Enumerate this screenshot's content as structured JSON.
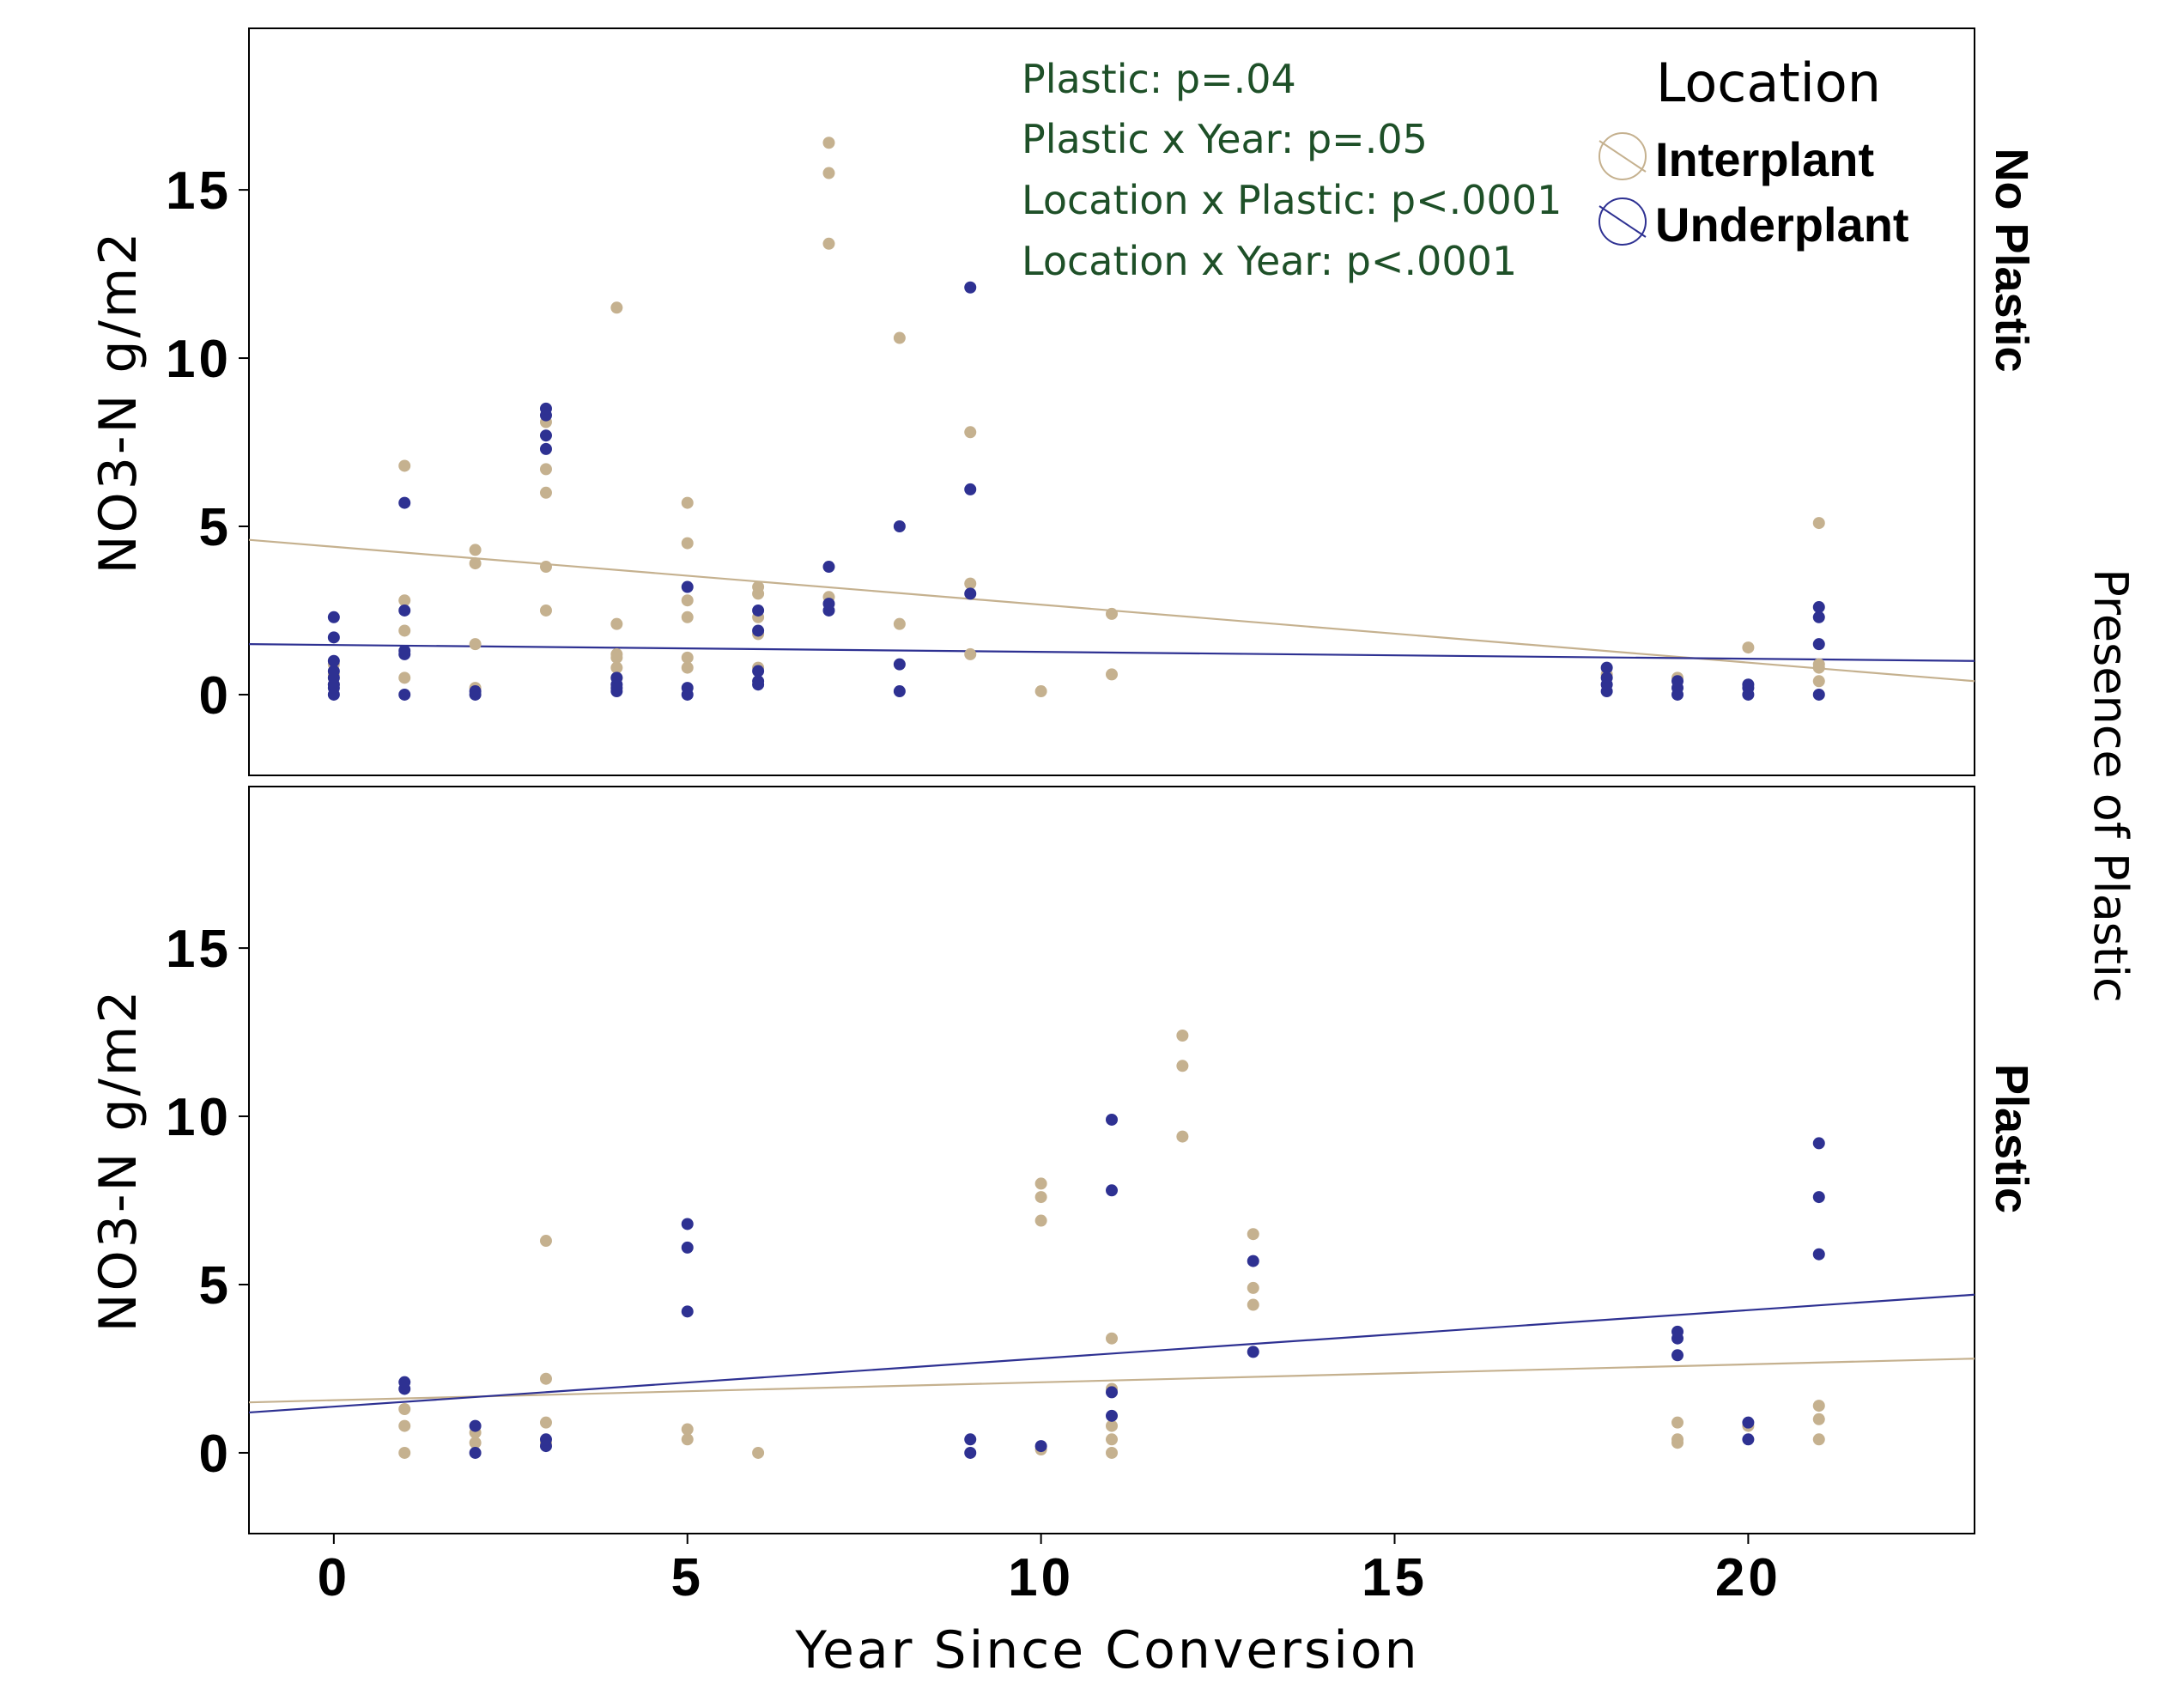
{
  "chart_data": {
    "type": "scatter",
    "xlabel": "Year Since Conversion",
    "ylabel": "NO3-N  g/m2",
    "facet_label": "Presence of Plastic",
    "xlim": [
      -1.2,
      23.2
    ],
    "ylim": [
      -2.4,
      19.8
    ],
    "x_ticks": [
      0,
      5,
      10,
      15,
      20
    ],
    "y_ticks": [
      0,
      5,
      10,
      15
    ],
    "legend": {
      "title": "Location",
      "placement": "top-right",
      "entries": [
        {
          "name": "Interplant",
          "color": "#C5B18F"
        },
        {
          "name": "Underplant",
          "color": "#2E3192"
        }
      ]
    },
    "annotations": [
      "Plastic: p=.04",
      "Plastic x Year: p=.05",
      "Location x Plastic: p<.0001",
      "Location x Year: p<.0001"
    ],
    "panels": [
      {
        "label": "No Plastic",
        "series": [
          {
            "name": "Interplant",
            "color": "#C5B18F",
            "points": [
              [
                0,
                0.3
              ],
              [
                0,
                0.6
              ],
              [
                0,
                0.9
              ],
              [
                1,
                0.5
              ],
              [
                1,
                1.9
              ],
              [
                1,
                2.8
              ],
              [
                1,
                6.8
              ],
              [
                2,
                0.2
              ],
              [
                2,
                1.5
              ],
              [
                2,
                3.9
              ],
              [
                2,
                4.3
              ],
              [
                3,
                2.5
              ],
              [
                3,
                3.8
              ],
              [
                3,
                6.0
              ],
              [
                3,
                6.7
              ],
              [
                3,
                8.1
              ],
              [
                4,
                0.5
              ],
              [
                4,
                0.8
              ],
              [
                4,
                1.1
              ],
              [
                4,
                1.2
              ],
              [
                4,
                2.1
              ],
              [
                4,
                11.5
              ],
              [
                5,
                0.8
              ],
              [
                5,
                1.1
              ],
              [
                5,
                2.3
              ],
              [
                5,
                2.8
              ],
              [
                5,
                4.5
              ],
              [
                5,
                5.7
              ],
              [
                6,
                0.8
              ],
              [
                6,
                1.8
              ],
              [
                6,
                2.3
              ],
              [
                6,
                3.0
              ],
              [
                6,
                3.2
              ],
              [
                7,
                2.9
              ],
              [
                7,
                13.4
              ],
              [
                7,
                15.5
              ],
              [
                7,
                16.4
              ],
              [
                8,
                2.1
              ],
              [
                8,
                10.6
              ],
              [
                9,
                1.2
              ],
              [
                9,
                3.3
              ],
              [
                9,
                7.8
              ],
              [
                10,
                0.1
              ],
              [
                11,
                0.6
              ],
              [
                11,
                2.4
              ],
              [
                18,
                0.6
              ],
              [
                19,
                0.5
              ],
              [
                20,
                1.4
              ],
              [
                21,
                0.4
              ],
              [
                21,
                0.8
              ],
              [
                21,
                0.9
              ],
              [
                21,
                5.1
              ]
            ]
          },
          {
            "name": "Underplant",
            "color": "#2E3192",
            "points": [
              [
                0,
                0.0
              ],
              [
                0,
                0.2
              ],
              [
                0,
                0.3
              ],
              [
                0,
                0.5
              ],
              [
                0,
                0.7
              ],
              [
                0,
                1.0
              ],
              [
                0,
                1.7
              ],
              [
                0,
                2.3
              ],
              [
                1,
                0.0
              ],
              [
                1,
                1.2
              ],
              [
                1,
                1.3
              ],
              [
                1,
                2.5
              ],
              [
                1,
                5.7
              ],
              [
                2,
                0.0
              ],
              [
                2,
                0.1
              ],
              [
                3,
                7.3
              ],
              [
                3,
                7.7
              ],
              [
                3,
                8.3
              ],
              [
                3,
                8.5
              ],
              [
                4,
                0.1
              ],
              [
                4,
                0.2
              ],
              [
                4,
                0.3
              ],
              [
                4,
                0.5
              ],
              [
                5,
                0.0
              ],
              [
                5,
                0.2
              ],
              [
                5,
                3.2
              ],
              [
                6,
                0.3
              ],
              [
                6,
                0.4
              ],
              [
                6,
                0.7
              ],
              [
                6,
                1.9
              ],
              [
                6,
                2.5
              ],
              [
                7,
                2.5
              ],
              [
                7,
                2.7
              ],
              [
                7,
                3.8
              ],
              [
                8,
                0.1
              ],
              [
                8,
                0.9
              ],
              [
                8,
                5.0
              ],
              [
                9,
                3.0
              ],
              [
                9,
                6.1
              ],
              [
                9,
                12.1
              ],
              [
                18,
                0.1
              ],
              [
                18,
                0.3
              ],
              [
                18,
                0.5
              ],
              [
                18,
                0.8
              ],
              [
                19,
                0.0
              ],
              [
                19,
                0.2
              ],
              [
                19,
                0.4
              ],
              [
                20,
                0.0
              ],
              [
                20,
                0.2
              ],
              [
                20,
                0.3
              ],
              [
                21,
                0.0
              ],
              [
                21,
                1.5
              ],
              [
                21,
                2.3
              ],
              [
                21,
                2.6
              ]
            ]
          }
        ],
        "fits": [
          {
            "series": "Interplant",
            "x": [
              -1.2,
              23.2
            ],
            "y": [
              4.6,
              0.4
            ]
          },
          {
            "series": "Underplant",
            "x": [
              -1.2,
              23.2
            ],
            "y": [
              1.5,
              1.0
            ]
          }
        ]
      },
      {
        "label": "Plastic",
        "series": [
          {
            "name": "Interplant",
            "color": "#C5B18F",
            "points": [
              [
                1,
                0.0
              ],
              [
                1,
                0.8
              ],
              [
                1,
                1.3
              ],
              [
                2,
                0.3
              ],
              [
                2,
                0.6
              ],
              [
                3,
                0.3
              ],
              [
                3,
                0.9
              ],
              [
                3,
                2.2
              ],
              [
                3,
                6.3
              ],
              [
                5,
                0.4
              ],
              [
                5,
                0.7
              ],
              [
                6,
                0.0
              ],
              [
                10,
                0.1
              ],
              [
                10,
                6.9
              ],
              [
                10,
                7.6
              ],
              [
                10,
                8.0
              ],
              [
                11,
                0.0
              ],
              [
                11,
                0.4
              ],
              [
                11,
                0.8
              ],
              [
                11,
                1.9
              ],
              [
                11,
                3.4
              ],
              [
                12,
                9.4
              ],
              [
                12,
                11.5
              ],
              [
                12,
                12.4
              ],
              [
                13,
                4.4
              ],
              [
                13,
                4.9
              ],
              [
                13,
                6.5
              ],
              [
                19,
                0.3
              ],
              [
                19,
                0.4
              ],
              [
                19,
                0.9
              ],
              [
                20,
                0.8
              ],
              [
                21,
                0.4
              ],
              [
                21,
                1.0
              ],
              [
                21,
                1.4
              ]
            ]
          },
          {
            "name": "Underplant",
            "color": "#2E3192",
            "points": [
              [
                1,
                1.9
              ],
              [
                1,
                2.1
              ],
              [
                2,
                0.0
              ],
              [
                2,
                0.8
              ],
              [
                3,
                0.2
              ],
              [
                3,
                0.4
              ],
              [
                5,
                4.2
              ],
              [
                5,
                6.1
              ],
              [
                5,
                6.8
              ],
              [
                9,
                0.0
              ],
              [
                9,
                0.4
              ],
              [
                10,
                0.2
              ],
              [
                11,
                1.1
              ],
              [
                11,
                1.8
              ],
              [
                11,
                7.8
              ],
              [
                11,
                9.9
              ],
              [
                13,
                3.0
              ],
              [
                13,
                5.7
              ],
              [
                19,
                2.9
              ],
              [
                19,
                3.4
              ],
              [
                19,
                3.6
              ],
              [
                20,
                0.4
              ],
              [
                20,
                0.9
              ],
              [
                21,
                5.9
              ],
              [
                21,
                7.6
              ],
              [
                21,
                9.2
              ]
            ]
          }
        ],
        "fits": [
          {
            "series": "Interplant",
            "x": [
              -1.2,
              23.2
            ],
            "y": [
              1.5,
              2.8
            ]
          },
          {
            "series": "Underplant",
            "x": [
              -1.2,
              23.2
            ],
            "y": [
              1.2,
              4.7
            ]
          }
        ]
      }
    ]
  }
}
